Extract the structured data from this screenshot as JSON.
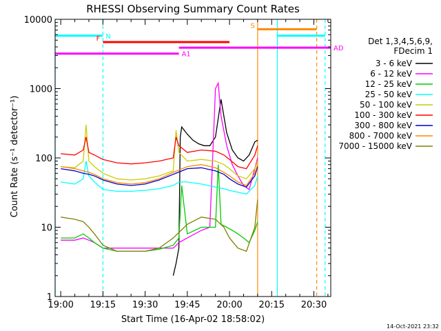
{
  "chart_data": {
    "type": "line",
    "title": "RHESSI Observing Summary Count Rates",
    "xlabel": "Start Time (16-Apr-02 18:58:02)",
    "ylabel": "Count Rate (s⁻¹ detector⁻¹)",
    "y_scale": "log",
    "ylim": [
      1,
      10000
    ],
    "xlim_minutes": [
      -2,
      96
    ],
    "x_ticks": [
      {
        "t": 0,
        "label": "19:00"
      },
      {
        "t": 15,
        "label": "19:15"
      },
      {
        "t": 30,
        "label": "19:30"
      },
      {
        "t": 45,
        "label": "19:45"
      },
      {
        "t": 60,
        "label": "20:00"
      },
      {
        "t": 75,
        "label": "20:15"
      },
      {
        "t": 90,
        "label": "20:30"
      }
    ],
    "y_ticks": [
      {
        "v": 1,
        "label": "1"
      },
      {
        "v": 10,
        "label": "10"
      },
      {
        "v": 100,
        "label": "100"
      },
      {
        "v": 1000,
        "label": "1000"
      },
      {
        "v": 10000,
        "label": "10000"
      }
    ],
    "grid": false,
    "legend_title": [
      "Det 1,3,4,5,6,9,",
      "FDecim 1"
    ],
    "legend_position": "right",
    "series": [
      {
        "name": "3 - 6 keV",
        "color": "#000000",
        "x": [
          40,
          41,
          42,
          42.5,
          43,
          45,
          47,
          49,
          51,
          53,
          55,
          57,
          59,
          61,
          63,
          65,
          67,
          69,
          70
        ],
        "y": [
          2,
          3,
          5,
          200,
          280,
          220,
          180,
          160,
          150,
          150,
          200,
          700,
          230,
          130,
          100,
          90,
          110,
          170,
          180
        ]
      },
      {
        "name": "6 - 12 keV",
        "color": "#ff00ff",
        "x": [
          0,
          5,
          8,
          10,
          12,
          15,
          20,
          25,
          30,
          35,
          40,
          42,
          45,
          50,
          53,
          55,
          56,
          57,
          59,
          61,
          63,
          65,
          67,
          69,
          70
        ],
        "y": [
          6.5,
          6.5,
          7,
          6.5,
          6,
          5,
          5,
          5,
          5,
          5,
          5,
          6,
          7,
          9,
          10,
          1000,
          1200,
          400,
          150,
          80,
          55,
          40,
          35,
          70,
          100
        ]
      },
      {
        "name": "12 - 25 keV",
        "color": "#00cc00",
        "x": [
          0,
          5,
          8,
          10,
          12,
          15,
          20,
          25,
          30,
          35,
          40,
          42,
          43,
          45,
          50,
          53,
          55,
          56,
          57,
          59,
          61,
          63,
          65,
          67,
          69,
          70
        ],
        "y": [
          7,
          7,
          8,
          7,
          6,
          5,
          4.5,
          4.5,
          4.5,
          4.8,
          5.5,
          7,
          40,
          8,
          10,
          10,
          10,
          80,
          11,
          10,
          9,
          8,
          7,
          6,
          9,
          12
        ]
      },
      {
        "name": "25 - 50 keV",
        "color": "#00ffff",
        "x": [
          0,
          5,
          8,
          9,
          10,
          12,
          15,
          20,
          25,
          30,
          35,
          40,
          42,
          45,
          50,
          55,
          58,
          60,
          63,
          66,
          69,
          70
        ],
        "y": [
          45,
          42,
          50,
          90,
          55,
          45,
          35,
          33,
          33,
          34,
          36,
          40,
          45,
          45,
          42,
          38,
          36,
          34,
          32,
          30,
          40,
          55
        ]
      },
      {
        "name": "50 - 100 keV",
        "color": "#cccc00",
        "x": [
          0,
          5,
          8,
          9,
          10,
          12,
          15,
          20,
          25,
          30,
          35,
          40,
          41,
          42,
          45,
          50,
          55,
          58,
          60,
          63,
          66,
          69,
          70
        ],
        "y": [
          75,
          72,
          90,
          300,
          90,
          75,
          60,
          50,
          48,
          50,
          55,
          65,
          250,
          120,
          90,
          95,
          90,
          80,
          70,
          55,
          50,
          70,
          90
        ]
      },
      {
        "name": "100 - 300 keV",
        "color": "#ff0000",
        "x": [
          0,
          5,
          8,
          9,
          10,
          12,
          15,
          20,
          25,
          30,
          35,
          40,
          41,
          42,
          45,
          50,
          55,
          58,
          60,
          63,
          66,
          69,
          70
        ],
        "y": [
          115,
          110,
          130,
          200,
          120,
          110,
          95,
          85,
          82,
          85,
          90,
          100,
          200,
          150,
          120,
          130,
          125,
          110,
          95,
          75,
          70,
          110,
          150
        ]
      },
      {
        "name": "300 - 800 keV",
        "color": "#0000cc",
        "x": [
          0,
          5,
          8,
          10,
          12,
          15,
          20,
          25,
          30,
          35,
          40,
          45,
          50,
          55,
          58,
          60,
          63,
          66,
          69,
          70
        ],
        "y": [
          70,
          65,
          60,
          58,
          55,
          48,
          42,
          40,
          42,
          48,
          58,
          70,
          72,
          65,
          58,
          50,
          42,
          38,
          55,
          75
        ]
      },
      {
        "name": "800 - 7000 keV",
        "color": "#ff8800",
        "x": [
          0,
          5,
          8,
          10,
          12,
          15,
          20,
          25,
          30,
          35,
          40,
          45,
          50,
          55,
          58,
          60,
          63,
          66,
          69,
          70
        ],
        "y": [
          75,
          70,
          65,
          62,
          58,
          50,
          44,
          42,
          44,
          50,
          62,
          75,
          80,
          72,
          62,
          55,
          45,
          40,
          60,
          80
        ]
      },
      {
        "name": "7000 - 15000 keV",
        "color": "#808000",
        "x": [
          0,
          5,
          8,
          10,
          12,
          15,
          20,
          25,
          30,
          35,
          40,
          45,
          50,
          55,
          58,
          60,
          63,
          66,
          69,
          70
        ],
        "y": [
          14,
          13,
          12,
          10,
          8,
          5.5,
          4.5,
          4.5,
          4.5,
          5,
          7,
          11,
          14,
          13,
          10,
          7,
          5,
          4.5,
          10,
          25
        ]
      }
    ],
    "attenuator_bars": [
      {
        "label": "N",
        "color": "#00ffff",
        "y": 5800,
        "segments": [
          [
            -2,
            15
          ],
          [
            77,
            94
          ]
        ]
      },
      {
        "label": "F",
        "color": "#ff0000",
        "y": 4700,
        "segments": [
          [
            15,
            60
          ]
        ]
      },
      {
        "label": "S",
        "color": "#ff8800",
        "y": 7200,
        "segments": [
          [
            70,
            91
          ]
        ]
      },
      {
        "label": "AD",
        "color": "#ff00ff",
        "y": 3900,
        "segments": [
          [
            42,
            96
          ]
        ]
      },
      {
        "label": "A1",
        "color": "#ff00ff",
        "y": 3200,
        "segments": [
          [
            -2,
            42
          ]
        ]
      }
    ],
    "vertical_markers": [
      {
        "t": -2,
        "color": "#00ffff",
        "style": "solid"
      },
      {
        "t": 15,
        "color": "#00ffff",
        "style": "dashed"
      },
      {
        "t": 70,
        "color": "#ff8800",
        "style": "solid"
      },
      {
        "t": 77,
        "color": "#00ffff",
        "style": "solid"
      },
      {
        "t": 91,
        "color": "#ff8800",
        "style": "dashed"
      },
      {
        "t": 94,
        "color": "#00ffff",
        "style": "dashed"
      }
    ],
    "footer": "14-Oct-2021 23:32"
  }
}
